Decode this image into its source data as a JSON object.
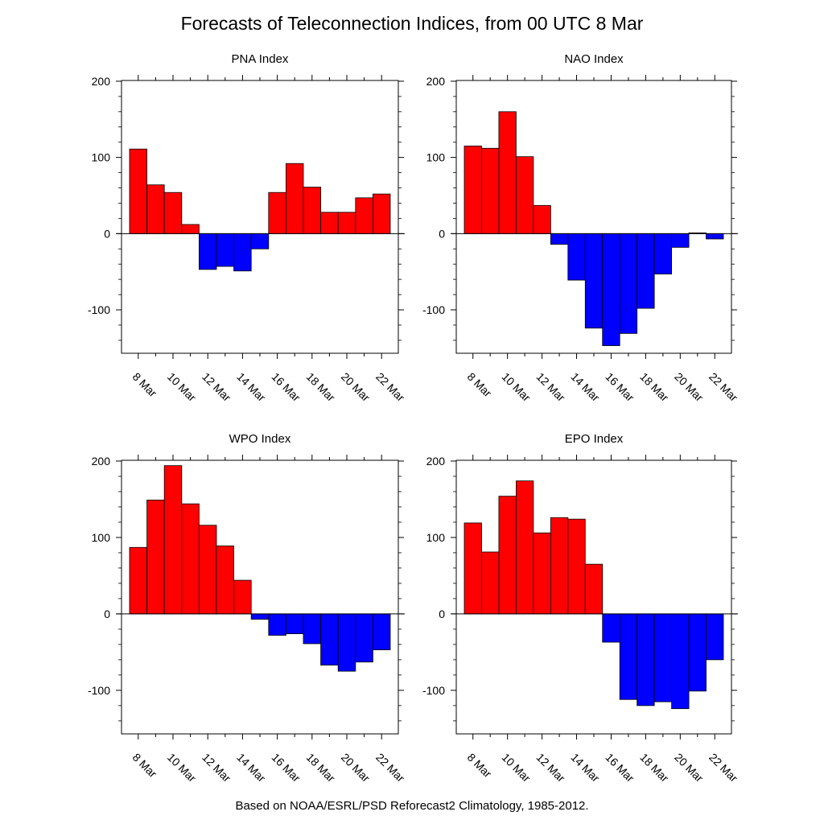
{
  "title": "Forecasts of Teleconnection Indices, from 00 UTC 8 Mar",
  "footer": "Based on NOAA/ESRL/PSD Reforecast2 Climatology, 1985-2012.",
  "colors": {
    "positive": "#ff0000",
    "negative": "#0000ff",
    "outline": "#000000"
  },
  "chart_data": [
    {
      "type": "bar",
      "title": "PNA Index",
      "categories": [
        "8 Mar",
        "9 Mar",
        "10 Mar",
        "11 Mar",
        "12 Mar",
        "13 Mar",
        "14 Mar",
        "15 Mar",
        "16 Mar",
        "17 Mar",
        "18 Mar",
        "19 Mar",
        "20 Mar",
        "21 Mar",
        "22 Mar"
      ],
      "x_tick_labels": [
        "8 Mar",
        "10 Mar",
        "12 Mar",
        "14 Mar",
        "16 Mar",
        "18 Mar",
        "20 Mar",
        "22 Mar"
      ],
      "values": [
        111,
        64,
        54,
        12,
        -47,
        -43,
        -49,
        -20,
        54,
        92,
        61,
        28,
        28,
        47,
        52
      ],
      "y_ticks": [
        200,
        100,
        0,
        -100
      ],
      "ylim": [
        -157,
        201
      ]
    },
    {
      "type": "bar",
      "title": "NAO Index",
      "categories": [
        "8 Mar",
        "9 Mar",
        "10 Mar",
        "11 Mar",
        "12 Mar",
        "13 Mar",
        "14 Mar",
        "15 Mar",
        "16 Mar",
        "17 Mar",
        "18 Mar",
        "19 Mar",
        "20 Mar",
        "21 Mar",
        "22 Mar"
      ],
      "x_tick_labels": [
        "8 Mar",
        "10 Mar",
        "12 Mar",
        "14 Mar",
        "16 Mar",
        "18 Mar",
        "20 Mar",
        "22 Mar"
      ],
      "values": [
        115,
        112,
        160,
        101,
        37,
        -14,
        -61,
        -124,
        -147,
        -131,
        -98,
        -53,
        -18,
        1,
        -7
      ],
      "y_ticks": [
        200,
        100,
        0,
        -100
      ],
      "ylim": [
        -157,
        201
      ]
    },
    {
      "type": "bar",
      "title": "WPO Index",
      "categories": [
        "8 Mar",
        "9 Mar",
        "10 Mar",
        "11 Mar",
        "12 Mar",
        "13 Mar",
        "14 Mar",
        "15 Mar",
        "16 Mar",
        "17 Mar",
        "18 Mar",
        "19 Mar",
        "20 Mar",
        "21 Mar",
        "22 Mar"
      ],
      "x_tick_labels": [
        "8 Mar",
        "10 Mar",
        "12 Mar",
        "14 Mar",
        "16 Mar",
        "18 Mar",
        "20 Mar",
        "22 Mar"
      ],
      "values": [
        87,
        149,
        194,
        144,
        116,
        89,
        44,
        -7,
        -28,
        -26,
        -39,
        -67,
        -75,
        -63,
        -47
      ],
      "y_ticks": [
        200,
        100,
        0,
        -100
      ],
      "ylim": [
        -157,
        201
      ]
    },
    {
      "type": "bar",
      "title": "EPO Index",
      "categories": [
        "8 Mar",
        "9 Mar",
        "10 Mar",
        "11 Mar",
        "12 Mar",
        "13 Mar",
        "14 Mar",
        "15 Mar",
        "16 Mar",
        "17 Mar",
        "18 Mar",
        "19 Mar",
        "20 Mar",
        "21 Mar",
        "22 Mar"
      ],
      "x_tick_labels": [
        "8 Mar",
        "10 Mar",
        "12 Mar",
        "14 Mar",
        "16 Mar",
        "18 Mar",
        "20 Mar",
        "22 Mar"
      ],
      "values": [
        119,
        81,
        154,
        174,
        106,
        126,
        124,
        65,
        -37,
        -112,
        -120,
        -115,
        -124,
        -101,
        -60
      ],
      "y_ticks": [
        200,
        100,
        0,
        -100
      ],
      "ylim": [
        -157,
        201
      ]
    }
  ]
}
